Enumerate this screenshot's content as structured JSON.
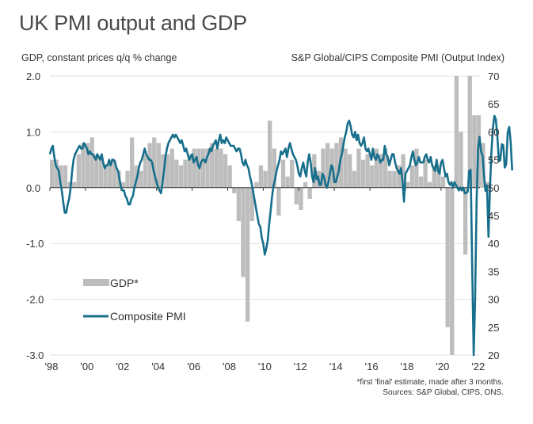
{
  "title": "UK PMI output and GDP",
  "left_axis_label": "GDP, constant prices q/q % change",
  "right_axis_label": "S&P Global/CIPS Composite PMI (Output Index)",
  "footnote": "*first 'final' estimate, made after 3 months.",
  "sources": "Sources: S&P Global, CIPS, ONS.",
  "colors": {
    "gdp": "#bdbdbd",
    "pmi": "#176f8c",
    "grid": "#e2e2e2",
    "axis": "#333333"
  },
  "chart_data": {
    "type": "bar+line",
    "title": "UK PMI output and GDP",
    "grid": true,
    "legend_placement": "left-lower-middle",
    "x_ticks": [
      "'98",
      "'00",
      "'02",
      "'04",
      "'06",
      "'08",
      "'10",
      "'12",
      "'14",
      "'16",
      "'18",
      "'20",
      "'22"
    ],
    "x_tick_years": [
      1998,
      2000,
      2002,
      2004,
      2006,
      2008,
      2010,
      2012,
      2014,
      2016,
      2018,
      2020,
      2022
    ],
    "y_left": {
      "label": "GDP, constant prices q/q % change",
      "ticks": [
        "2.0",
        "1.0",
        "0.0",
        "-1.0",
        "-2.0",
        "-3.0"
      ],
      "range": [
        -3.0,
        2.0
      ]
    },
    "y_right": {
      "label": "S&P Global/CIPS Composite PMI (Output Index)",
      "ticks": [
        "70",
        "65",
        "60",
        "55",
        "50",
        "45",
        "40",
        "35",
        "30",
        "25",
        "20"
      ],
      "range": [
        20,
        70
      ]
    },
    "series": [
      {
        "name": "GDP*",
        "type": "bar",
        "axis": "left",
        "frequency": "quarterly",
        "start": 1998.0,
        "values": [
          0.5,
          0.5,
          0.4,
          0.4,
          0.1,
          0.1,
          0.6,
          0.8,
          0.8,
          0.9,
          0.6,
          0.5,
          0.4,
          0.4,
          0.5,
          0.3,
          0.1,
          0.3,
          0.9,
          0.4,
          0.3,
          0.6,
          0.8,
          0.9,
          0.8,
          0.6,
          0.6,
          0.7,
          0.5,
          0.4,
          0.5,
          0.6,
          0.7,
          0.7,
          0.7,
          0.7,
          0.8,
          0.7,
          0.7,
          0.6,
          0.4,
          -0.1,
          -0.6,
          -1.6,
          -2.4,
          -0.6,
          0.1,
          0.4,
          0.3,
          1.2,
          0.7,
          -0.5,
          0.5,
          0.2,
          0.5,
          -0.3,
          -0.4,
          0.1,
          -0.2,
          0.6,
          0.3,
          0.7,
          0.8,
          0.7,
          0.8,
          0.9,
          0.7,
          0.6,
          0.3,
          0.7,
          0.5,
          0.6,
          0.4,
          0.7,
          0.6,
          0.7,
          0.3,
          0.3,
          0.4,
          0.6,
          0.1,
          0.4,
          0.7,
          0.2,
          0.5,
          0.1,
          0.4,
          0.4,
          0.2,
          -2.5,
          -19.8,
          15.5,
          1.0,
          -1.2,
          4.8,
          1.3,
          1.3,
          0.8,
          0.1,
          0.0
        ]
      },
      {
        "name": "Composite PMI",
        "type": "line",
        "axis": "right",
        "frequency": "monthly",
        "start": 1998.0,
        "values": [
          56,
          57,
          57.5,
          55.5,
          54,
          53.5,
          53,
          51,
          49.5,
          47.5,
          45.5,
          45.5,
          47,
          48,
          50,
          53,
          55,
          56,
          56.5,
          57,
          57.5,
          57,
          57,
          58,
          57.5,
          57,
          56,
          56.5,
          56,
          56,
          55.5,
          55,
          56,
          55.5,
          55,
          56,
          54.5,
          53.5,
          54,
          54,
          55,
          54,
          55,
          55,
          54.5,
          53.5,
          53,
          51.5,
          50,
          49.5,
          49.5,
          48.5,
          48,
          47,
          47,
          48,
          48.5,
          50,
          51,
          52,
          53.5,
          54.5,
          55,
          56,
          57,
          56,
          55.5,
          55,
          55,
          54.5,
          53,
          52,
          51,
          50,
          49.5,
          49,
          51,
          53,
          55.5,
          57,
          58,
          58.5,
          59,
          59.5,
          59,
          59.5,
          59,
          58.5,
          58,
          58.5,
          57.5,
          56.5,
          57,
          56,
          55,
          55.5,
          56,
          54.5,
          55,
          55.5,
          54,
          53.5,
          54.5,
          55,
          55,
          54.5,
          55.5,
          56,
          57,
          56.5,
          57.5,
          58,
          58.5,
          57,
          58.5,
          59.5,
          58,
          58.5,
          58,
          59,
          58.5,
          58,
          57.5,
          57.5,
          57.5,
          57,
          56.5,
          57,
          57,
          56,
          54.5,
          54,
          55,
          54,
          53.5,
          52,
          51,
          49.5,
          48,
          46.5,
          45,
          43.5,
          43,
          41,
          40,
          38,
          39,
          40.5,
          43.5,
          46,
          48.5,
          50.5,
          51.5,
          53,
          54,
          55,
          56.5,
          56,
          56.5,
          57,
          55.5,
          57,
          58,
          57,
          56,
          55.5,
          55,
          54,
          52.5,
          52,
          53.5,
          54.5,
          53,
          52,
          54.5,
          56,
          54.5,
          52,
          51,
          53.5,
          51.5,
          52,
          50.5,
          50.5,
          52.5,
          52,
          50.5,
          50,
          51,
          52.5,
          54,
          53.5,
          51,
          51,
          52,
          53,
          55,
          56,
          57.5,
          59,
          60,
          61.5,
          62,
          61,
          59.5,
          59,
          60,
          58.5,
          59.5,
          58,
          57.5,
          58,
          59,
          57,
          56.5,
          57,
          56,
          55,
          57,
          55.5,
          55,
          56,
          55.5,
          54.5,
          55,
          55,
          57.5,
          56,
          55.5,
          54,
          55,
          56,
          56,
          54.5,
          53.5,
          53,
          52.5,
          53.5,
          51,
          47.5,
          52.5,
          53,
          53.5,
          54,
          55.5,
          56.5,
          55,
          54,
          54.5,
          55.5,
          54.5,
          54.5,
          54.5,
          55.5,
          56,
          55,
          54.5,
          55.5,
          54,
          53.5,
          53,
          55,
          53,
          52.5,
          54.5,
          55,
          53.5,
          52,
          52.5,
          51,
          50.5,
          51,
          50,
          51,
          50.5,
          50,
          49.5,
          50,
          49.5,
          50,
          49,
          49,
          49.3,
          53,
          53.2,
          36,
          13.8,
          30,
          47.7,
          57,
          59.1,
          56.5,
          55.7,
          52.1,
          49.4,
          50.4,
          41.2,
          49.6,
          56.4,
          60.7,
          62.9,
          62.2,
          59.2,
          54.8,
          54.9,
          57.8,
          57.6,
          53.6,
          54.2,
          59.9,
          60.9,
          58.2,
          53.1
        ]
      }
    ]
  },
  "legend": [
    {
      "label": "GDP*",
      "kind": "bar"
    },
    {
      "label": "Composite PMI",
      "kind": "line"
    }
  ]
}
